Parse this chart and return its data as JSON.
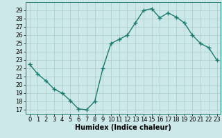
{
  "x": [
    0,
    1,
    2,
    3,
    4,
    5,
    6,
    7,
    8,
    9,
    10,
    11,
    12,
    13,
    14,
    15,
    16,
    17,
    18,
    19,
    20,
    21,
    22,
    23
  ],
  "y": [
    22.5,
    21.3,
    20.5,
    19.5,
    19.0,
    18.1,
    17.1,
    17.0,
    18.0,
    22.0,
    25.0,
    25.5,
    26.0,
    27.5,
    29.0,
    29.2,
    28.1,
    28.7,
    28.2,
    27.5,
    26.0,
    25.0,
    24.5,
    23.0
  ],
  "line_color": "#1a7a6e",
  "marker": "+",
  "marker_size": 4,
  "marker_linewidth": 1.0,
  "bg_color": "#cde8e8",
  "grid_color": "#aacccc",
  "xlabel": "Humidex (Indice chaleur)",
  "xlabel_fontsize": 7,
  "ylim": [
    16.5,
    30.0
  ],
  "xlim": [
    -0.5,
    23.5
  ],
  "yticks": [
    17,
    18,
    19,
    20,
    21,
    22,
    23,
    24,
    25,
    26,
    27,
    28,
    29
  ],
  "xticks": [
    0,
    1,
    2,
    3,
    4,
    5,
    6,
    7,
    8,
    9,
    10,
    11,
    12,
    13,
    14,
    15,
    16,
    17,
    18,
    19,
    20,
    21,
    22,
    23
  ],
  "tick_fontsize": 6,
  "spine_color": "#1a7a6e",
  "line_width": 1.0
}
